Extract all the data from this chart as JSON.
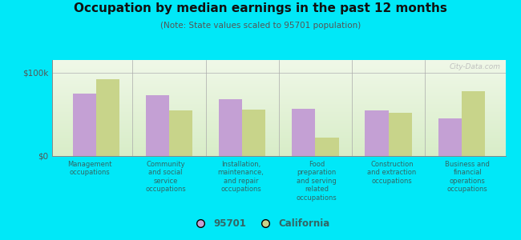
{
  "title": "Occupation by median earnings in the past 12 months",
  "subtitle": "(Note: State values scaled to 95701 population)",
  "categories": [
    "Management\noccupations",
    "Community\nand social\nservice\noccupations",
    "Installation,\nmaintenance,\nand repair\noccupations",
    "Food\npreparation\nand serving\nrelated\noccupations",
    "Construction\nand extraction\noccupations",
    "Business and\nfinancial\noperations\noccupations"
  ],
  "values_95701": [
    75000,
    73000,
    68000,
    57000,
    55000,
    45000
  ],
  "values_california": [
    92000,
    55000,
    56000,
    22000,
    52000,
    78000
  ],
  "color_95701": "#c4a0d4",
  "color_california": "#c8d48a",
  "yticks": [
    0,
    100000
  ],
  "ytick_labels": [
    "$0",
    "$100k"
  ],
  "ylim": [
    0,
    115000
  ],
  "outer_background": "#00e8f8",
  "chart_bg_bottom": "#d8edc8",
  "chart_bg_top": "#f0f8e8",
  "legend_label_95701": "95701",
  "legend_label_california": "California",
  "watermark": "City-Data.com"
}
